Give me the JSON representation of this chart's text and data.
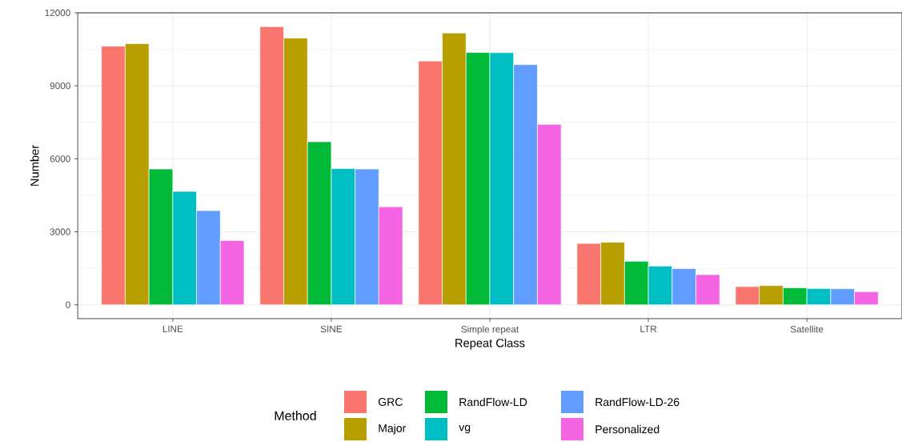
{
  "chart_data": {
    "type": "bar",
    "xlabel": "Repeat Class",
    "ylabel": "Number",
    "legend_title": "Method",
    "categories": [
      "LINE",
      "SINE",
      "Simple repeat",
      "LTR",
      "Satellite"
    ],
    "series": [
      {
        "name": "GRC",
        "color": "#f8766d",
        "values": [
          10630,
          11430,
          10020,
          2520,
          750
        ]
      },
      {
        "name": "Major",
        "color": "#b79f00",
        "values": [
          10730,
          10960,
          11170,
          2570,
          790
        ]
      },
      {
        "name": "RandFlow-LD",
        "color": "#00ba38",
        "values": [
          5580,
          6700,
          10370,
          1790,
          700
        ]
      },
      {
        "name": "vg",
        "color": "#00bfc4",
        "values": [
          4660,
          5600,
          10360,
          1590,
          670
        ]
      },
      {
        "name": "RandFlow-LD-26",
        "color": "#619cff",
        "values": [
          3870,
          5580,
          9870,
          1490,
          660
        ]
      },
      {
        "name": "Personalized",
        "color": "#f564e3",
        "values": [
          2640,
          4030,
          7420,
          1240,
          540
        ]
      }
    ],
    "ylim": [
      -570,
      12000
    ],
    "yticks": [
      0,
      3000,
      6000,
      9000,
      12000
    ],
    "grid": true,
    "legend": "bottom"
  }
}
